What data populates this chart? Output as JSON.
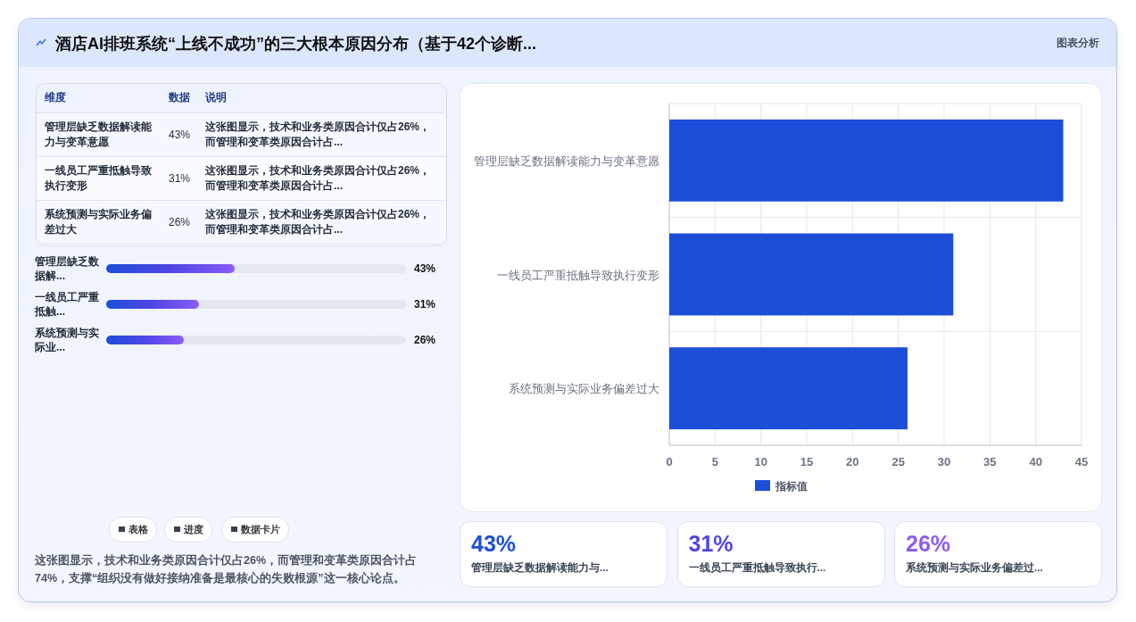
{
  "chart_data": [
    {
      "type": "bar",
      "orientation": "horizontal",
      "categories": [
        "管理层缺乏数据解读能力与变革意愿",
        "一线员工严重抵触导致执行变形",
        "系统预测与实际业务偏差过大"
      ],
      "series": [
        {
          "name": "指标值",
          "color": "#1d4ed8",
          "values": [
            43,
            31,
            26
          ]
        }
      ],
      "xlim": [
        0,
        45
      ],
      "xticks": [
        0,
        5,
        10,
        15,
        20,
        25,
        30,
        35,
        40,
        45
      ],
      "grid": true,
      "legend": "bottom",
      "annotations": [
        "图表分析",
        "表格",
        "进度",
        "数据卡片",
        "这张图显示，技术和业务类原因合计仅占26%，而管理和变革类原因合计占74%，支撑“组织没有做好接纳准备是最核心的失败根源”这一核心论点。"
      ]
    },
    {
      "type": "other",
      "title": "酒店AI排班系统“上线不成功”的三大根本原因分布（基于42个诊断...",
      "categories": [
        "管理层缺乏数据解读能力与变革意愿",
        "一线员工严重抵触导致执行变形",
        "系统预测与实际业务偏差过大"
      ],
      "value_labels": [
        "43%",
        "31%",
        "26%"
      ],
      "annotations": [
        "维度",
        "数据",
        "说明",
        "这张图显示，技术和业务类原因合计仅占26%，而管理和变革类原因合计占...",
        "这张图显示，技术和业务类原因合计仅占26%，而管理和变革类原因合计占...",
        "这张图显示，技术和业务类原因合计仅占26%，而管理和变革类原因合计占..."
      ]
    },
    {
      "type": "bar",
      "orientation": "horizontal",
      "categories": [
        "管理层缺乏数据解...",
        "一线员工严重抵触...",
        "系统预测与实际业..."
      ],
      "values": [
        43,
        31,
        26
      ],
      "value_labels": [
        "43%",
        "31%",
        "26%"
      ],
      "xlim": [
        0,
        100
      ],
      "tick_labels": false,
      "color": "#4f46e5"
    },
    {
      "type": "other",
      "categories": [
        "管理层缺乏数据解读能力与...",
        "一线员工严重抵触导致执行...",
        "系统预测与实际业务偏差过..."
      ],
      "value_labels": [
        "43%",
        "31%",
        "26%"
      ]
    }
  ]
}
